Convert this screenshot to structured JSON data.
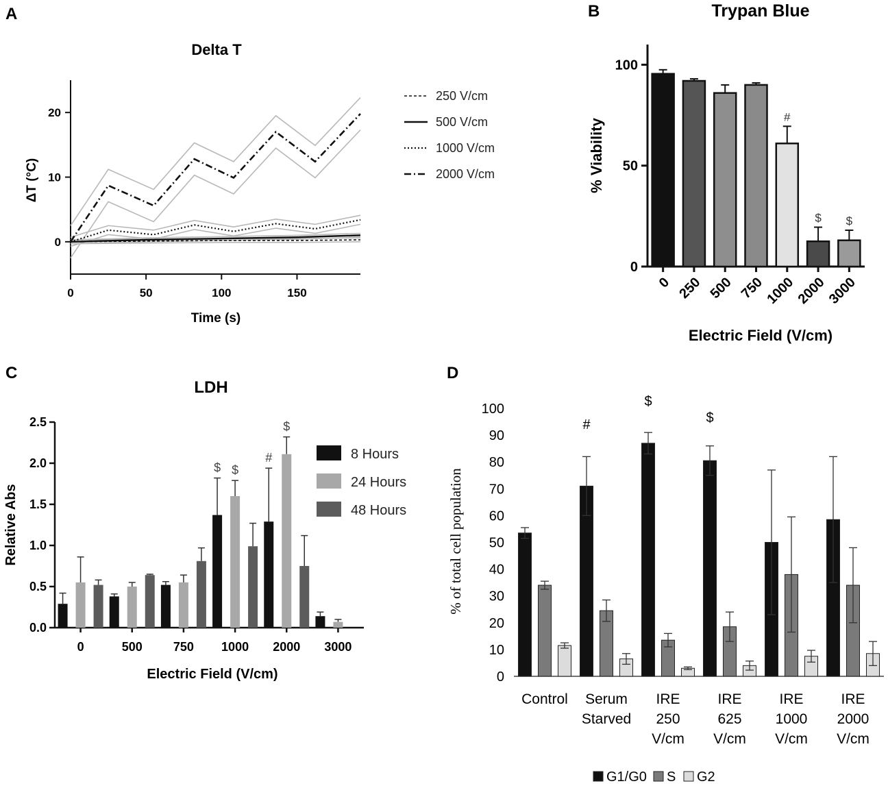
{
  "chart_data": [
    {
      "panel": "A",
      "type": "line",
      "title": "Delta T",
      "xlabel": "Time (s)",
      "ylabel": "ΔT (°C)",
      "xlim": [
        0,
        192
      ],
      "ylim": [
        -5,
        25
      ],
      "xticks": [
        0,
        50,
        100,
        150
      ],
      "yticks": [
        0,
        10,
        20
      ],
      "legend": [
        "250 V/cm",
        "500 V/cm",
        "1000 V/cm",
        "2000 V/cm"
      ],
      "series": [
        {
          "name": "250 V/cm",
          "style": "dashed",
          "x": [
            0,
            50,
            100,
            150,
            192
          ],
          "y": [
            0,
            0.1,
            0.2,
            0.2,
            0.3
          ],
          "err": 0.3
        },
        {
          "name": "500 V/cm",
          "style": "solid",
          "x": [
            0,
            50,
            100,
            150,
            192
          ],
          "y": [
            0,
            0.3,
            0.5,
            0.7,
            1.0
          ],
          "err": 0.3
        },
        {
          "name": "1000 V/cm",
          "style": "dotted",
          "x": [
            0,
            25,
            55,
            82,
            108,
            136,
            162,
            192
          ],
          "y": [
            0,
            1.8,
            1.1,
            2.6,
            1.6,
            2.8,
            2.0,
            3.4
          ],
          "err": 0.7
        },
        {
          "name": "2000 V/cm",
          "style": "dashdot",
          "x": [
            0,
            25,
            55,
            82,
            108,
            136,
            162,
            192
          ],
          "y": [
            0,
            8.7,
            5.6,
            12.8,
            9.9,
            17.0,
            12.4,
            19.8
          ],
          "err": 2.5
        }
      ]
    },
    {
      "panel": "B",
      "type": "bar",
      "title": "Trypan Blue",
      "xlabel": "Electric  Field (V/cm)",
      "ylabel": "%  Viability",
      "ylim": [
        0,
        110
      ],
      "yticks": [
        0,
        50,
        100
      ],
      "categories": [
        "0",
        "250",
        "500",
        "750",
        "1000",
        "2000",
        "3000"
      ],
      "values": [
        95.5,
        92,
        86,
        90,
        61,
        12.5,
        13
      ],
      "errors": [
        2,
        1,
        4,
        1,
        8.5,
        7,
        5
      ],
      "markers": [
        "",
        "",
        "",
        "",
        "#",
        "$",
        "$"
      ],
      "colors": [
        "#111111",
        "#555555",
        "#8e8e8e",
        "#8a8a8a",
        "#e2e2e2",
        "#4a4a4a",
        "#9a9a9a"
      ]
    },
    {
      "panel": "C",
      "type": "bar",
      "title": "LDH",
      "xlabel": "Electric Field (V/cm)",
      "ylabel": "Relative  Abs",
      "ylim": [
        0,
        2.5
      ],
      "yticks": [
        "0.0",
        "0.5",
        "1.0",
        "1.5",
        "2.0",
        "2.5"
      ],
      "categories": [
        "0",
        "500",
        "750",
        "1000",
        "2000",
        "3000"
      ],
      "series": [
        {
          "name": "8 Hours",
          "color": "#111111",
          "values": [
            0.29,
            0.38,
            0.52,
            1.37,
            1.29,
            0.14
          ],
          "errors": [
            0.13,
            0.03,
            0.04,
            0.45,
            0.65,
            0.05
          ]
        },
        {
          "name": "24 Hours",
          "color": "#a8a8a8",
          "values": [
            0.55,
            0.5,
            0.55,
            1.6,
            2.11,
            0.07
          ],
          "errors": [
            0.31,
            0.05,
            0.09,
            0.19,
            0.21,
            0.03
          ]
        },
        {
          "name": "48 Hours",
          "color": "#5c5c5c",
          "values": [
            0.52,
            0.64,
            0.81,
            0.99,
            0.75,
            null
          ],
          "errors": [
            0.06,
            0.01,
            0.16,
            0.28,
            0.37,
            null
          ]
        }
      ],
      "markers": [
        {
          "category": 3,
          "series": 0,
          "label": "$"
        },
        {
          "category": 3,
          "series": 1,
          "label": "$"
        },
        {
          "category": 4,
          "series": 0,
          "label": "#"
        },
        {
          "category": 4,
          "series": 1,
          "label": "$"
        }
      ]
    },
    {
      "panel": "D",
      "type": "bar",
      "ylabel": "% of total cell population",
      "ylim": [
        0,
        100
      ],
      "yticks": [
        0,
        10,
        20,
        30,
        40,
        50,
        60,
        70,
        80,
        90,
        100
      ],
      "categories": [
        [
          "Control"
        ],
        [
          "Serum",
          "Starved"
        ],
        [
          "IRE",
          "250",
          "V/cm"
        ],
        [
          "IRE",
          "625",
          "V/cm"
        ],
        [
          "IRE",
          "1000",
          "V/cm"
        ],
        [
          "IRE",
          "2000",
          "V/cm"
        ]
      ],
      "series": [
        {
          "name": "G1/G0",
          "color": "#111111",
          "values": [
            53.5,
            71,
            87,
            80.5,
            50,
            58.5
          ],
          "errors": [
            2,
            11,
            4,
            5.5,
            27,
            23.5
          ]
        },
        {
          "name": "S",
          "color": "#7a7a7a",
          "values": [
            34,
            24.5,
            13.5,
            18.5,
            38,
            34
          ],
          "errors": [
            1.5,
            4,
            2.5,
            5.5,
            21.5,
            14
          ]
        },
        {
          "name": "G2",
          "color": "#dcdcdc",
          "values": [
            11.5,
            6.5,
            3,
            4,
            7.5,
            8.5
          ],
          "errors": [
            1,
            2,
            0.5,
            1.7,
            2.2,
            4.5
          ]
        }
      ],
      "markers": [
        {
          "category": 1,
          "label": "#"
        },
        {
          "category": 2,
          "label": "$"
        },
        {
          "category": 3,
          "label": "$"
        }
      ]
    }
  ],
  "panel_labels": [
    "A",
    "B",
    "C",
    "D"
  ]
}
